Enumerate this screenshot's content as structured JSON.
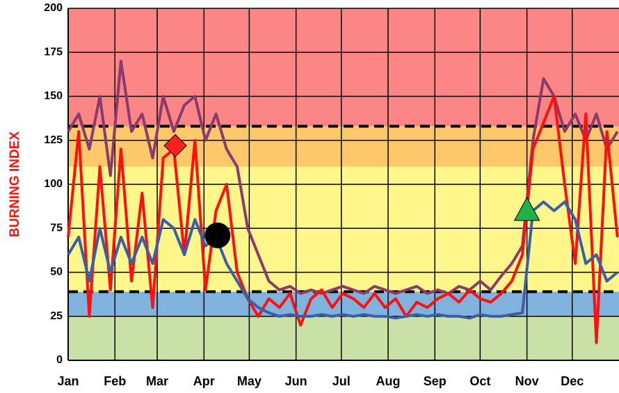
{
  "chart_data": {
    "type": "line",
    "y_label": "BURNING INDEX",
    "xlim": [
      1,
      366
    ],
    "xticks": [
      {
        "value": 1,
        "label": "Jan"
      },
      {
        "value": 32,
        "label": "Feb"
      },
      {
        "value": 60,
        "label": "Mar"
      },
      {
        "value": 91,
        "label": "Apr"
      },
      {
        "value": 121,
        "label": "May"
      },
      {
        "value": 152,
        "label": "Jun"
      },
      {
        "value": 182,
        "label": "Jul"
      },
      {
        "value": 213,
        "label": "Aug"
      },
      {
        "value": 244,
        "label": "Sep"
      },
      {
        "value": 274,
        "label": "Oct"
      },
      {
        "value": 305,
        "label": "Nov"
      },
      {
        "value": 335,
        "label": "Dec"
      }
    ],
    "ylim": [
      0,
      200
    ],
    "yticks": [
      0,
      25,
      50,
      75,
      100,
      125,
      150,
      175,
      200
    ],
    "grid": true,
    "bands": [
      {
        "from": 0,
        "to": 25,
        "color": "#c9e0a6"
      },
      {
        "from": 25,
        "to": 39,
        "color": "#7fb2dc"
      },
      {
        "from": 39,
        "to": 110,
        "color": "#fdf68a"
      },
      {
        "from": 110,
        "to": 133,
        "color": "#fdc86a"
      },
      {
        "from": 133,
        "to": 200,
        "color": "#fc8686"
      }
    ],
    "reference_lines": [
      39,
      133
    ],
    "x": [
      1,
      8,
      15,
      22,
      29,
      36,
      43,
      50,
      57,
      64,
      71,
      78,
      85,
      92,
      99,
      106,
      113,
      120,
      127,
      134,
      141,
      148,
      155,
      162,
      169,
      176,
      183,
      190,
      197,
      204,
      211,
      218,
      225,
      232,
      239,
      246,
      253,
      260,
      267,
      274,
      281,
      288,
      295,
      302,
      309,
      316,
      323,
      330,
      337,
      344,
      351,
      358,
      365
    ],
    "series": [
      {
        "color": "#8b3a6e",
        "values": [
          130,
          140,
          120,
          150,
          105,
          170,
          130,
          140,
          115,
          150,
          130,
          145,
          150,
          125,
          140,
          120,
          110,
          75,
          60,
          45,
          40,
          42,
          38,
          40,
          38,
          40,
          42,
          40,
          38,
          42,
          40,
          38,
          40,
          42,
          38,
          40,
          38,
          42,
          40,
          45,
          40,
          48,
          55,
          65,
          125,
          160,
          150,
          130,
          140,
          125,
          140,
          120,
          130
        ]
      },
      {
        "color": "#ff1010",
        "values": [
          70,
          130,
          25,
          110,
          40,
          120,
          45,
          95,
          30,
          115,
          120,
          60,
          125,
          40,
          85,
          100,
          50,
          35,
          25,
          35,
          30,
          38,
          20,
          35,
          40,
          30,
          38,
          35,
          30,
          38,
          30,
          35,
          25,
          33,
          30,
          35,
          38,
          33,
          40,
          35,
          33,
          38,
          45,
          60,
          120,
          135,
          150,
          100,
          55,
          140,
          10,
          130,
          70
        ]
      },
      {
        "color": "#3a5ea8",
        "values": [
          60,
          70,
          45,
          75,
          50,
          70,
          55,
          70,
          55,
          80,
          75,
          60,
          80,
          65,
          70,
          55,
          45,
          35,
          30,
          27,
          25,
          26,
          25,
          25,
          26,
          25,
          26,
          25,
          26,
          25,
          25,
          24,
          25,
          26,
          25,
          26,
          25,
          25,
          24,
          26,
          25,
          25,
          26,
          27,
          85,
          90,
          85,
          90,
          80,
          55,
          60,
          45,
          50
        ]
      }
    ],
    "markers": [
      {
        "x": 72,
        "y": 122,
        "shape": "diamond",
        "color": "#ff2020"
      },
      {
        "x": 100,
        "y": 71,
        "shape": "circle",
        "color": "#000000"
      },
      {
        "x": 305,
        "y": 85,
        "shape": "triangle",
        "color": "#22b04a"
      }
    ]
  }
}
